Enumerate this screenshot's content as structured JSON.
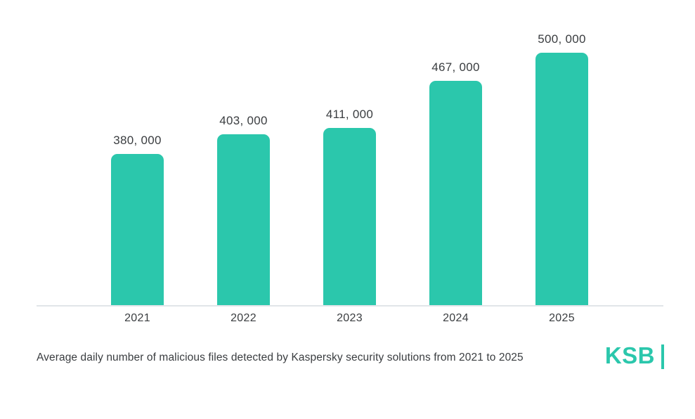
{
  "chart_data": {
    "type": "bar",
    "title": "",
    "categories": [
      "2021",
      "2022",
      "2023",
      "2024",
      "2025"
    ],
    "values": [
      380000,
      403000,
      411000,
      467000,
      500000
    ],
    "value_labels": [
      "380, 000",
      "403, 000",
      "411, 000",
      "467, 000",
      "500, 000"
    ],
    "xlabel": "",
    "ylabel": "",
    "ylim": [
      200000,
      500000
    ],
    "grid": false,
    "legend": "none"
  },
  "caption": "Average daily number of malicious files detected by Kaspersky security solutions from 2021 to 2025",
  "logo": {
    "text": "KSB"
  },
  "colors": {
    "accent": "#2BC7AC",
    "axis_line": "#E1E5E9",
    "text": "#3A3D40"
  }
}
